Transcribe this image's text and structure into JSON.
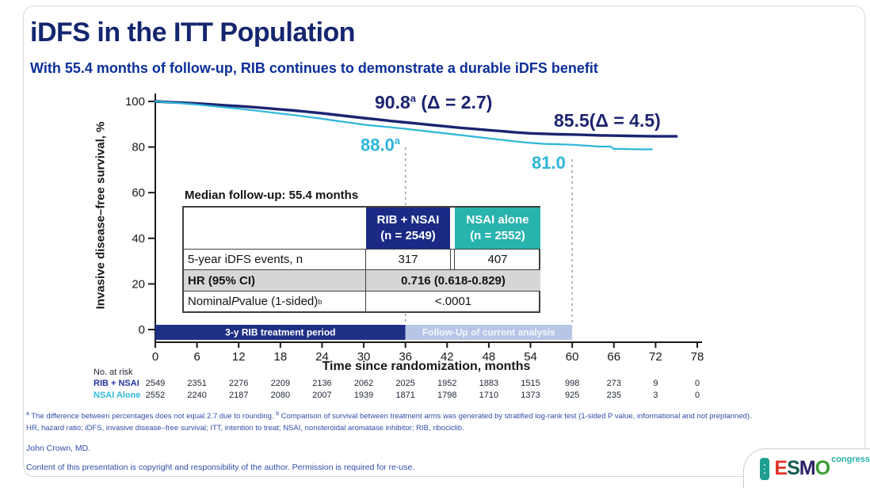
{
  "slide": {
    "title": "iDFS in the ITT Population",
    "subtitle": "With 55.4 months of follow-up, RIB continues to demonstrate a durable iDFS benefit"
  },
  "chart_data": {
    "type": "line",
    "subtype": "kaplan-meier",
    "xlabel": "Time since randomization, months",
    "ylabel": "Invasive disease–free survival, %",
    "xlim": [
      0,
      78
    ],
    "ylim": [
      0,
      100
    ],
    "x_ticks": [
      0,
      6,
      12,
      18,
      24,
      30,
      36,
      42,
      48,
      54,
      60,
      66,
      72,
      78
    ],
    "y_ticks": [
      0,
      20,
      40,
      60,
      80,
      100
    ],
    "grid": false,
    "legend_position": "none",
    "series": [
      {
        "name": "RIB + NSAI",
        "color": "#1c2470",
        "x": [
          0,
          2,
          4,
          6,
          8,
          10,
          12,
          14,
          16,
          18,
          20,
          22,
          24,
          26,
          28,
          30,
          32,
          34,
          36,
          38,
          40,
          42,
          44,
          46,
          48,
          50,
          52,
          54,
          56,
          58,
          60,
          62,
          64,
          66,
          68,
          70,
          72,
          75
        ],
        "y": [
          100,
          99.7,
          99.4,
          99.1,
          98.7,
          98.3,
          97.9,
          97.5,
          97.0,
          96.5,
          96.0,
          95.4,
          94.8,
          94.1,
          93.4,
          92.7,
          92.1,
          91.4,
          90.8,
          90.2,
          89.6,
          89.0,
          88.4,
          87.9,
          87.4,
          86.9,
          86.4,
          86.0,
          85.8,
          85.6,
          85.5,
          85.3,
          85.1,
          85.0,
          84.9,
          84.8,
          84.7,
          84.7
        ]
      },
      {
        "name": "NSAI alone",
        "color": "#2cb6d9",
        "x": [
          0,
          2,
          4,
          6,
          8,
          10,
          12,
          14,
          16,
          18,
          20,
          22,
          24,
          26,
          28,
          30,
          32,
          34,
          36,
          38,
          40,
          42,
          44,
          46,
          48,
          50,
          52,
          54,
          56,
          58,
          60,
          62,
          64,
          65.5,
          66,
          68,
          70,
          71.5
        ],
        "y": [
          100,
          99.6,
          99.1,
          98.6,
          98.0,
          97.4,
          96.8,
          96.1,
          95.4,
          94.7,
          94.0,
          93.2,
          92.4,
          91.5,
          90.7,
          89.8,
          89.2,
          88.6,
          88.0,
          87.3,
          86.6,
          85.9,
          85.2,
          84.5,
          83.8,
          83.1,
          82.4,
          81.8,
          81.4,
          81.2,
          81.0,
          80.6,
          80.2,
          80.2,
          79.2,
          79.1,
          79.0,
          79.0
        ]
      }
    ],
    "key_values": {
      "rib_36mo": 90.8,
      "nsai_36mo": 88.0,
      "delta_36mo": 2.7,
      "rib_60mo": 85.5,
      "nsai_60mo": 81.0,
      "delta_60mo": 4.5
    },
    "annotations": [
      {
        "text": "90.8",
        "sup": "a",
        "rest": " (Δ = 2.7)"
      },
      {
        "text": "85.5",
        "sup": "",
        "rest": "(Δ = 4.5)"
      },
      {
        "text": "88.0",
        "sup": "a",
        "rest": ""
      },
      {
        "text": "81.0",
        "sup": "",
        "rest": ""
      }
    ],
    "reference_lines_x": [
      36,
      60
    ],
    "treatment_bars": [
      {
        "label": "3-y RIB treatment period",
        "from": 0,
        "to": 36,
        "color": "#1e2f85",
        "text_color": "#ffffff"
      },
      {
        "label": "Follow-Up of current analysis",
        "from": 36,
        "to": 60,
        "color": "#b9c5e6",
        "text_color": "#f4f7fd"
      }
    ]
  },
  "table": {
    "median_followup": "Median follow-up: 55.4 months",
    "col_headers": [
      {
        "line1": "RIB + NSAI",
        "line2": "(n = 2549)",
        "bg": "#1b2a85"
      },
      {
        "line1": "NSAI alone",
        "line2": "(n = 2552)",
        "bg": "#29b3ad"
      }
    ],
    "row_events": {
      "label": "5-year iDFS events, n",
      "rib": "317",
      "nsai": "407"
    },
    "row_hr": {
      "label": "HR (95% CI)",
      "value": "0.716 (0.618-0.829)"
    },
    "row_p": {
      "label_pre": "Nominal ",
      "label_italic": "P",
      "label_post": " value (1-sided)",
      "label_sup": "b",
      "value": "<.0001"
    }
  },
  "at_risk": {
    "label": "No. at risk",
    "rows": [
      {
        "name": "RIB + NSAI",
        "color": "#2435a0",
        "values": [
          "2549",
          "2351",
          "2276",
          "2209",
          "2136",
          "2062",
          "2025",
          "1952",
          "1883",
          "1515",
          "998",
          "273",
          "9",
          "0"
        ]
      },
      {
        "name": "NSAI Alone",
        "color": "#2fb9d9",
        "values": [
          "2552",
          "2240",
          "2187",
          "2080",
          "2007",
          "1939",
          "1871",
          "1798",
          "1710",
          "1373",
          "925",
          "235",
          "3",
          "0"
        ]
      }
    ]
  },
  "footnotes": {
    "sup_a": "a",
    "line1a": " The difference between percentages does not equal 2.7 due to rounding. ",
    "sup_b": "b",
    "line1b": " Comparison of survival between treatment arms was generated by stratified log-rank test (1-sided P value, informational and not preplanned).",
    "line2": "HR, hazard ratio; iDFS, invasive disease–free survival; ITT, intention to treat; NSAI, nonsteroidal aromatase inhibitor; RIB, ribociclib."
  },
  "credits": {
    "author": "John Crown, MD.",
    "copyright": "Content of this presentation is copyright and responsibility of the author. Permission is required for re-use."
  },
  "logo": {
    "letters": [
      {
        "ch": "E",
        "color": "#e13327"
      },
      {
        "ch": "S",
        "color": "#175a52"
      },
      {
        "ch": "M",
        "color": "#2b2064"
      },
      {
        "ch": "O",
        "color": "#3c9b33"
      }
    ],
    "congress": "congress"
  }
}
